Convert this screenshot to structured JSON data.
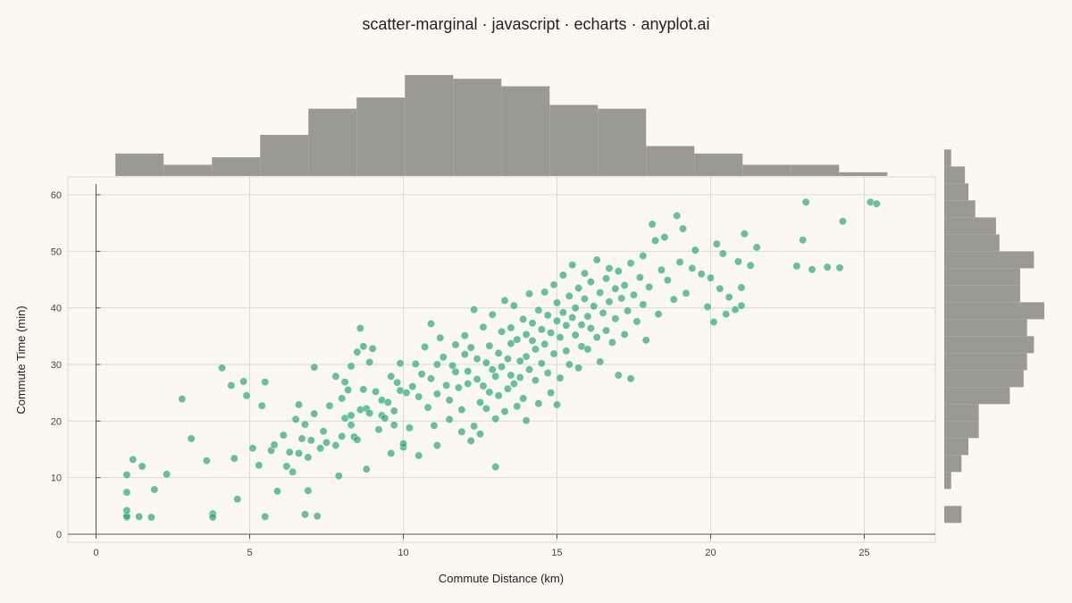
{
  "chart_data": {
    "type": "scatter",
    "title": "scatter-marginal · javascript · echarts · anyplot.ai",
    "xlabel": "Commute Distance (km)",
    "ylabel": "Commute Time (min)",
    "xlim": [
      0,
      27.5
    ],
    "ylim": [
      0,
      61
    ],
    "x_ticks": [
      0,
      5,
      10,
      15,
      20,
      25
    ],
    "y_ticks": [
      0,
      10,
      20,
      30,
      40,
      50,
      60
    ],
    "grid": true,
    "point_color": "#2AA77A",
    "histogram_color": "#9A9A91",
    "points": [
      [
        1.0,
        3.0
      ],
      [
        1.0,
        3.2
      ],
      [
        1.0,
        4.2
      ],
      [
        1.0,
        7.4
      ],
      [
        1.0,
        10.5
      ],
      [
        1.2,
        13.2
      ],
      [
        1.4,
        3.1
      ],
      [
        1.5,
        12.0
      ],
      [
        1.8,
        3.0
      ],
      [
        1.9,
        7.9
      ],
      [
        2.3,
        10.6
      ],
      [
        2.8,
        23.9
      ],
      [
        3.1,
        16.9
      ],
      [
        3.6,
        13.0
      ],
      [
        3.8,
        3.6
      ],
      [
        3.8,
        3.0
      ],
      [
        4.1,
        29.4
      ],
      [
        4.4,
        26.3
      ],
      [
        4.5,
        13.4
      ],
      [
        4.6,
        6.2
      ],
      [
        4.8,
        27.0
      ],
      [
        4.9,
        24.5
      ],
      [
        5.1,
        15.2
      ],
      [
        5.3,
        12.2
      ],
      [
        5.4,
        22.7
      ],
      [
        5.5,
        3.1
      ],
      [
        5.5,
        26.9
      ],
      [
        5.7,
        14.8
      ],
      [
        5.8,
        15.8
      ],
      [
        5.9,
        7.6
      ],
      [
        6.1,
        17.5
      ],
      [
        6.2,
        12.0
      ],
      [
        6.3,
        14.5
      ],
      [
        6.4,
        11.0
      ],
      [
        6.5,
        20.3
      ],
      [
        6.6,
        22.9
      ],
      [
        6.6,
        14.3
      ],
      [
        6.7,
        16.9
      ],
      [
        6.8,
        3.5
      ],
      [
        6.8,
        19.4
      ],
      [
        6.9,
        7.7
      ],
      [
        6.9,
        13.6
      ],
      [
        7.0,
        16.6
      ],
      [
        7.1,
        21.3
      ],
      [
        7.1,
        29.5
      ],
      [
        7.2,
        3.2
      ],
      [
        7.3,
        15.2
      ],
      [
        7.4,
        18.2
      ],
      [
        7.5,
        16.2
      ],
      [
        7.6,
        22.7
      ],
      [
        7.8,
        15.7
      ],
      [
        7.8,
        27.9
      ],
      [
        7.9,
        10.3
      ],
      [
        8.0,
        17.3
      ],
      [
        8.0,
        24.0
      ],
      [
        8.1,
        26.9
      ],
      [
        8.1,
        20.5
      ],
      [
        8.2,
        25.5
      ],
      [
        8.3,
        29.7
      ],
      [
        8.3,
        21.0
      ],
      [
        8.3,
        19.3
      ],
      [
        8.4,
        17.2
      ],
      [
        8.5,
        16.7
      ],
      [
        8.5,
        32.2
      ],
      [
        8.6,
        36.4
      ],
      [
        8.6,
        22.0
      ],
      [
        8.7,
        33.2
      ],
      [
        8.7,
        25.6
      ],
      [
        8.8,
        22.2
      ],
      [
        8.8,
        11.5
      ],
      [
        8.9,
        21.4
      ],
      [
        8.9,
        30.4
      ],
      [
        9.0,
        32.8
      ],
      [
        9.1,
        25.2
      ],
      [
        9.2,
        18.5
      ],
      [
        9.3,
        23.7
      ],
      [
        9.3,
        21.0
      ],
      [
        9.4,
        20.5
      ],
      [
        9.5,
        23.3
      ],
      [
        9.6,
        27.9
      ],
      [
        9.6,
        14.3
      ],
      [
        9.7,
        21.8
      ],
      [
        9.7,
        19.3
      ],
      [
        9.8,
        26.8
      ],
      [
        9.9,
        30.2
      ],
      [
        9.9,
        25.4
      ],
      [
        10.0,
        15.4
      ],
      [
        10.0,
        16.0
      ],
      [
        10.1,
        25.0
      ],
      [
        10.2,
        18.8
      ],
      [
        10.3,
        26.1
      ],
      [
        10.4,
        30.1
      ],
      [
        10.5,
        13.9
      ],
      [
        10.5,
        24.3
      ],
      [
        10.6,
        28.3
      ],
      [
        10.7,
        33.1
      ],
      [
        10.8,
        22.4
      ],
      [
        10.9,
        27.5
      ],
      [
        10.9,
        37.2
      ],
      [
        11.0,
        19.2
      ],
      [
        11.1,
        24.8
      ],
      [
        11.1,
        30.0
      ],
      [
        11.1,
        15.7
      ],
      [
        11.2,
        34.7
      ],
      [
        11.3,
        31.3
      ],
      [
        11.4,
        26.3
      ],
      [
        11.5,
        20.3
      ],
      [
        11.5,
        23.7
      ],
      [
        11.6,
        29.8
      ],
      [
        11.7,
        33.5
      ],
      [
        11.7,
        28.7
      ],
      [
        11.8,
        25.9
      ],
      [
        11.9,
        18.1
      ],
      [
        11.9,
        22.0
      ],
      [
        12.0,
        35.1
      ],
      [
        12.0,
        31.8
      ],
      [
        12.1,
        26.6
      ],
      [
        12.1,
        28.8
      ],
      [
        12.2,
        16.5
      ],
      [
        12.2,
        33.0
      ],
      [
        12.3,
        19.1
      ],
      [
        12.3,
        39.7
      ],
      [
        12.4,
        27.4
      ],
      [
        12.4,
        31.0
      ],
      [
        12.5,
        23.3
      ],
      [
        12.5,
        17.7
      ],
      [
        12.6,
        36.6
      ],
      [
        12.6,
        26.2
      ],
      [
        12.7,
        22.2
      ],
      [
        12.7,
        30.3
      ],
      [
        12.8,
        33.3
      ],
      [
        12.8,
        25.1
      ],
      [
        12.9,
        38.8
      ],
      [
        12.9,
        29.1
      ],
      [
        13.0,
        20.4
      ],
      [
        13.0,
        27.9
      ],
      [
        13.0,
        11.9
      ],
      [
        13.1,
        32.0
      ],
      [
        13.1,
        24.5
      ],
      [
        13.2,
        35.8
      ],
      [
        13.2,
        29.6
      ],
      [
        13.3,
        41.3
      ],
      [
        13.3,
        21.7
      ],
      [
        13.4,
        25.7
      ],
      [
        13.4,
        31.0
      ],
      [
        13.5,
        36.5
      ],
      [
        13.5,
        28.1
      ],
      [
        13.5,
        33.7
      ],
      [
        13.6,
        26.6
      ],
      [
        13.6,
        40.4
      ],
      [
        13.7,
        22.6
      ],
      [
        13.7,
        34.4
      ],
      [
        13.8,
        30.6
      ],
      [
        13.8,
        27.7
      ],
      [
        13.9,
        38.0
      ],
      [
        13.9,
        24.0
      ],
      [
        14.0,
        35.3
      ],
      [
        14.0,
        31.4
      ],
      [
        14.0,
        20.1
      ],
      [
        14.1,
        29.1
      ],
      [
        14.1,
        42.5
      ],
      [
        14.2,
        34.2
      ],
      [
        14.2,
        37.3
      ],
      [
        14.3,
        27.2
      ],
      [
        14.3,
        32.7
      ],
      [
        14.4,
        39.6
      ],
      [
        14.4,
        23.1
      ],
      [
        14.5,
        36.2
      ],
      [
        14.5,
        30.2
      ],
      [
        14.6,
        42.8
      ],
      [
        14.6,
        33.6
      ],
      [
        14.7,
        28.5
      ],
      [
        14.7,
        38.7
      ],
      [
        14.8,
        25.0
      ],
      [
        14.8,
        35.6
      ],
      [
        14.9,
        44.1
      ],
      [
        14.9,
        31.9
      ],
      [
        15.0,
        37.7
      ],
      [
        15.0,
        40.9
      ],
      [
        15.0,
        22.9
      ],
      [
        15.1,
        34.8
      ],
      [
        15.1,
        27.6
      ],
      [
        15.2,
        39.2
      ],
      [
        15.2,
        45.8
      ],
      [
        15.3,
        32.4
      ],
      [
        15.3,
        36.9
      ],
      [
        15.4,
        42.1
      ],
      [
        15.4,
        30.0
      ],
      [
        15.5,
        38.3
      ],
      [
        15.5,
        47.6
      ],
      [
        15.6,
        35.2
      ],
      [
        15.6,
        40.0
      ],
      [
        15.7,
        29.4
      ],
      [
        15.7,
        43.5
      ],
      [
        15.8,
        37.0
      ],
      [
        15.8,
        33.2
      ],
      [
        15.9,
        41.6
      ],
      [
        15.9,
        46.1
      ],
      [
        16.0,
        38.5
      ],
      [
        16.0,
        32.7
      ],
      [
        16.1,
        44.6
      ],
      [
        16.1,
        36.4
      ],
      [
        16.2,
        40.3
      ],
      [
        16.3,
        48.5
      ],
      [
        16.3,
        34.8
      ],
      [
        16.4,
        42.7
      ],
      [
        16.4,
        30.5
      ],
      [
        16.5,
        39.1
      ],
      [
        16.6,
        45.2
      ],
      [
        16.6,
        36.0
      ],
      [
        16.7,
        41.1
      ],
      [
        16.7,
        47.0
      ],
      [
        16.8,
        33.9
      ],
      [
        16.9,
        43.4
      ],
      [
        16.9,
        38.1
      ],
      [
        17.0,
        28.1
      ],
      [
        17.0,
        46.5
      ],
      [
        17.1,
        41.7
      ],
      [
        17.2,
        35.3
      ],
      [
        17.2,
        44.0
      ],
      [
        17.3,
        39.5
      ],
      [
        17.4,
        47.9
      ],
      [
        17.4,
        27.5
      ],
      [
        17.5,
        42.3
      ],
      [
        17.6,
        37.6
      ],
      [
        17.7,
        45.4
      ],
      [
        17.8,
        40.6
      ],
      [
        17.8,
        49.2
      ],
      [
        17.9,
        34.3
      ],
      [
        18.0,
        43.7
      ],
      [
        18.1,
        54.8
      ],
      [
        18.2,
        51.9
      ],
      [
        18.3,
        38.9
      ],
      [
        18.4,
        46.7
      ],
      [
        18.5,
        52.5
      ],
      [
        18.6,
        44.9
      ],
      [
        18.8,
        41.5
      ],
      [
        18.9,
        56.3
      ],
      [
        19.0,
        48.1
      ],
      [
        19.1,
        54.0
      ],
      [
        19.2,
        42.6
      ],
      [
        19.4,
        47.0
      ],
      [
        19.5,
        50.2
      ],
      [
        19.7,
        46.0
      ],
      [
        19.9,
        40.2
      ],
      [
        20.0,
        45.3
      ],
      [
        20.1,
        37.5
      ],
      [
        20.2,
        51.3
      ],
      [
        20.3,
        43.4
      ],
      [
        20.4,
        49.6
      ],
      [
        20.5,
        38.9
      ],
      [
        20.6,
        41.9
      ],
      [
        20.8,
        39.7
      ],
      [
        20.9,
        48.2
      ],
      [
        21.0,
        43.6
      ],
      [
        21.1,
        53.1
      ],
      [
        21.3,
        47.5
      ],
      [
        21.5,
        50.7
      ],
      [
        21.0,
        40.4
      ],
      [
        22.8,
        47.4
      ],
      [
        23.0,
        52.0
      ],
      [
        23.3,
        46.8
      ],
      [
        23.1,
        58.7
      ],
      [
        23.8,
        47.2
      ],
      [
        24.2,
        47.1
      ],
      [
        24.3,
        55.3
      ],
      [
        25.2,
        58.7
      ],
      [
        25.4,
        58.4
      ]
    ],
    "hist_x": {
      "bin_start": 0.63,
      "bin_width": 1.57,
      "counts": [
        6,
        3,
        5,
        11,
        18,
        21,
        27,
        26,
        24,
        19,
        18,
        8,
        6,
        3,
        3,
        1
      ]
    },
    "hist_y": {
      "bin_start": 2,
      "bin_width": 3,
      "counts": [
        5,
        0,
        2,
        5,
        7,
        10,
        10,
        19,
        23,
        24,
        26,
        24,
        29,
        22,
        22,
        26,
        16,
        15,
        9,
        7,
        6,
        2
      ]
    }
  }
}
